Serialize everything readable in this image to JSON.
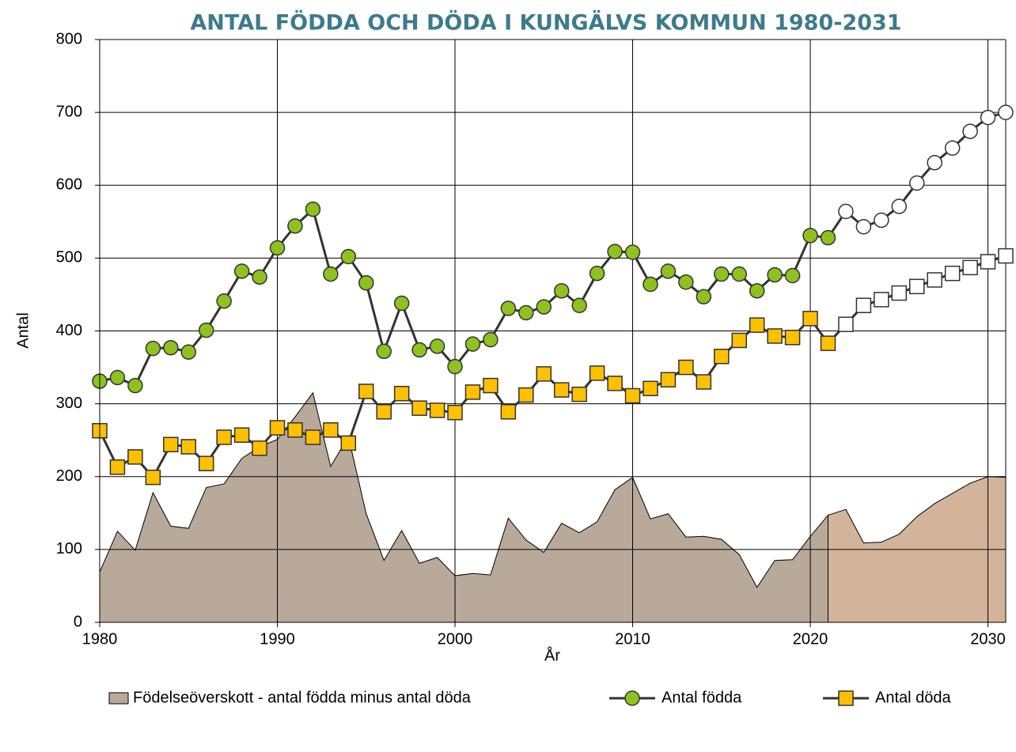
{
  "chart_data": {
    "type": "line",
    "title": "ANTAL FÖDDA OCH DÖDA I KUNGÄLVS KOMMUN 1980-2031",
    "x_label": "År",
    "y_label": "Antal",
    "x": [
      1980,
      1981,
      1982,
      1983,
      1984,
      1985,
      1986,
      1987,
      1988,
      1989,
      1990,
      1991,
      1992,
      1993,
      1994,
      1995,
      1996,
      1997,
      1998,
      1999,
      2000,
      2001,
      2002,
      2003,
      2004,
      2005,
      2006,
      2007,
      2008,
      2009,
      2010,
      2011,
      2012,
      2013,
      2014,
      2015,
      2016,
      2017,
      2018,
      2019,
      2020,
      2021,
      2022,
      2023,
      2024,
      2025,
      2026,
      2027,
      2028,
      2029,
      2030,
      2031
    ],
    "xlim": [
      1980,
      2031
    ],
    "xticks": [
      1980,
      1990,
      2000,
      2010,
      2020,
      2030
    ],
    "ylim": [
      0,
      800
    ],
    "yticks": [
      0,
      100,
      200,
      300,
      400,
      500,
      600,
      700,
      800
    ],
    "grid": true,
    "legend": "bottom",
    "series": [
      {
        "name": "Födelseöverskott - antal födda minus antal döda",
        "type": "area",
        "color": "#b9a99a",
        "forecast_color": "#d3b49b",
        "forecast_from": 2021,
        "values": [
          69,
          125,
          99,
          178,
          132,
          129,
          185,
          190,
          225,
          241,
          251,
          282,
          315,
          214,
          255,
          149,
          85,
          126,
          81,
          89,
          64,
          67,
          65,
          143,
          113,
          96,
          136,
          123,
          138,
          182,
          199,
          142,
          149,
          117,
          118,
          114,
          93,
          48,
          85,
          86,
          118,
          147,
          155,
          109,
          110,
          121,
          145,
          163,
          177,
          191,
          200,
          199
        ]
      },
      {
        "name": "Antal födda",
        "type": "line",
        "marker": "circle",
        "color": "#8dc21f",
        "forecast_color": "#ffffff",
        "forecast_from": 2022,
        "values": [
          331,
          336,
          325,
          376,
          377,
          371,
          401,
          441,
          482,
          474,
          514,
          544,
          567,
          478,
          502,
          466,
          372,
          438,
          374,
          379,
          351,
          382,
          388,
          431,
          425,
          433,
          455,
          435,
          479,
          509,
          508,
          464,
          482,
          467,
          447,
          478,
          478,
          455,
          477,
          476,
          531,
          528,
          564,
          543,
          552,
          571,
          603,
          631,
          651,
          674,
          693,
          700
        ]
      },
      {
        "name": "Antal döda",
        "type": "line",
        "marker": "square",
        "color": "#ffc000",
        "forecast_color": "#ffffff",
        "forecast_from": 2022,
        "values": [
          263,
          213,
          227,
          199,
          244,
          241,
          218,
          254,
          257,
          239,
          267,
          264,
          254,
          264,
          246,
          317,
          289,
          314,
          294,
          291,
          288,
          316,
          325,
          289,
          312,
          341,
          319,
          313,
          342,
          328,
          311,
          321,
          333,
          350,
          330,
          365,
          387,
          408,
          393,
          391,
          417,
          383,
          409,
          435,
          443,
          452,
          461,
          470,
          479,
          487,
          495,
          503
        ]
      }
    ]
  }
}
